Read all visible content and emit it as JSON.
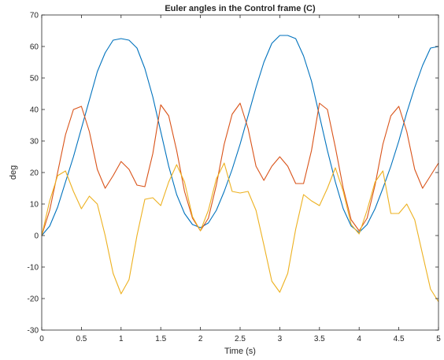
{
  "chart_data": {
    "type": "line",
    "title": "Euler angles in the Control frame (C)",
    "xlabel": "Time (s)",
    "ylabel": "deg",
    "xlim": [
      0,
      5
    ],
    "ylim": [
      -30,
      70
    ],
    "xticks": [
      "0",
      "0.5",
      "1",
      "1.5",
      "2",
      "2.5",
      "3",
      "3.5",
      "4",
      "4.5",
      "5"
    ],
    "yticks": [
      "-30",
      "-20",
      "-10",
      "0",
      "10",
      "20",
      "30",
      "40",
      "50",
      "60",
      "70"
    ],
    "grid": false,
    "legend": "none",
    "series": [
      {
        "color": "#0072BD",
        "x": [
          0,
          0.1,
          0.2,
          0.3,
          0.4,
          0.5,
          0.6,
          0.7,
          0.8,
          0.9,
          1.0,
          1.1,
          1.2,
          1.3,
          1.4,
          1.5,
          1.6,
          1.7,
          1.8,
          1.9,
          2.0,
          2.1,
          2.2,
          2.3,
          2.4,
          2.5,
          2.6,
          2.7,
          2.8,
          2.9,
          3.0,
          3.1,
          3.2,
          3.3,
          3.4,
          3.5,
          3.6,
          3.7,
          3.8,
          3.9,
          4.0,
          4.1,
          4.2,
          4.3,
          4.4,
          4.5,
          4.6,
          4.7,
          4.8,
          4.9,
          5.0
        ],
        "values": [
          0,
          3,
          9,
          17,
          25,
          34,
          43,
          52,
          58,
          62,
          62.5,
          62,
          59.5,
          53,
          44,
          33,
          22,
          13,
          7,
          3.5,
          2.5,
          4,
          8,
          14,
          21,
          29,
          38,
          47,
          55,
          61,
          63.5,
          63.5,
          62.5,
          57,
          49,
          38,
          27,
          17,
          8.5,
          3,
          1,
          3.5,
          8.5,
          15,
          22,
          30,
          39,
          47,
          54,
          59.5,
          60
        ]
      },
      {
        "color": "#D95319",
        "x": [
          0,
          0.1,
          0.2,
          0.3,
          0.4,
          0.5,
          0.6,
          0.7,
          0.8,
          0.9,
          1.0,
          1.1,
          1.2,
          1.3,
          1.4,
          1.5,
          1.6,
          1.7,
          1.8,
          1.9,
          2.0,
          2.1,
          2.2,
          2.3,
          2.4,
          2.5,
          2.6,
          2.7,
          2.8,
          2.9,
          3.0,
          3.1,
          3.2,
          3.3,
          3.4,
          3.5,
          3.6,
          3.7,
          3.8,
          3.9,
          4.0,
          4.1,
          4.2,
          4.3,
          4.4,
          4.5,
          4.6,
          4.7,
          4.8,
          4.9,
          5.0
        ],
        "values": [
          0,
          8,
          20,
          32,
          40,
          41,
          33,
          21,
          15,
          19,
          23.5,
          21,
          16,
          15.5,
          26,
          41.5,
          38,
          27,
          14,
          5.5,
          1.5,
          5.5,
          16,
          29,
          38.5,
          42,
          34,
          22,
          17.5,
          22,
          25,
          22,
          16.5,
          16.5,
          27,
          42,
          40,
          28,
          15,
          5,
          1.5,
          5.5,
          16,
          29,
          38,
          41,
          33,
          21,
          15,
          19,
          23
        ]
      },
      {
        "color": "#EDB120",
        "x": [
          0,
          0.1,
          0.2,
          0.3,
          0.4,
          0.5,
          0.6,
          0.7,
          0.8,
          0.9,
          1.0,
          1.1,
          1.2,
          1.3,
          1.4,
          1.5,
          1.6,
          1.7,
          1.8,
          1.9,
          2.0,
          2.1,
          2.2,
          2.3,
          2.4,
          2.5,
          2.6,
          2.7,
          2.8,
          2.9,
          3.0,
          3.1,
          3.2,
          3.3,
          3.4,
          3.5,
          3.6,
          3.7,
          3.8,
          3.9,
          4.0,
          4.1,
          4.2,
          4.3,
          4.4,
          4.5,
          4.6,
          4.7,
          4.8,
          4.9,
          5.0
        ],
        "values": [
          0,
          11,
          19,
          20.5,
          14,
          8.5,
          12.5,
          10,
          0,
          -12,
          -18.5,
          -14,
          0,
          11.5,
          12,
          9.5,
          17,
          22.5,
          17,
          6,
          1.5,
          8,
          18,
          23,
          14,
          13.5,
          14,
          8,
          -3,
          -14.5,
          -18,
          -12,
          2,
          13,
          11,
          9.5,
          15,
          21.5,
          14,
          3.5,
          0.5,
          8,
          17,
          20.5,
          7,
          7,
          10,
          5,
          -6,
          -17,
          -21
        ]
      }
    ]
  }
}
